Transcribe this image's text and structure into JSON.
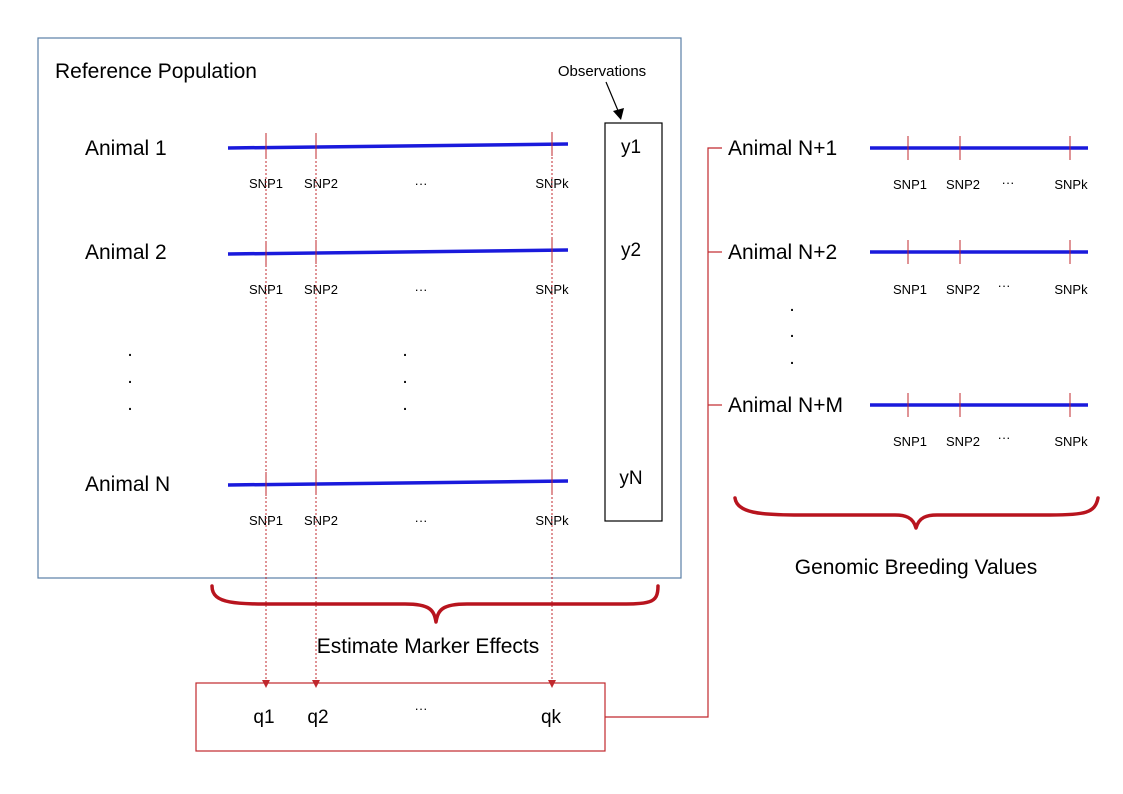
{
  "colors": {
    "chromosome": "#1a1adc",
    "marker": "#c0282d",
    "brace": "#b8141e",
    "reference_box": "#5a7fa6",
    "text": "#000000"
  },
  "reference": {
    "title": "Reference Population",
    "observations_label": "Observations",
    "animals": [
      {
        "label": "Animal 1",
        "obs": "y1"
      },
      {
        "label": "Animal 2",
        "obs": "y2"
      },
      {
        "label": "Animal N",
        "obs": "yN"
      }
    ],
    "snp_labels": [
      "SNP1",
      "SNP2",
      "···",
      "SNPk"
    ],
    "dot": "."
  },
  "estimate": {
    "label": "Estimate Marker Effects",
    "effects": [
      "q1",
      "q2",
      "···",
      "qk"
    ]
  },
  "candidates": {
    "animals": [
      {
        "label": "Animal N+1"
      },
      {
        "label": "Animal N+2"
      },
      {
        "label": "Animal N+M"
      }
    ],
    "snp_labels": [
      "SNP1",
      "SNP2",
      "···",
      "SNPk"
    ],
    "dot": "."
  },
  "gebv": {
    "label": "Genomic Breeding Values"
  }
}
